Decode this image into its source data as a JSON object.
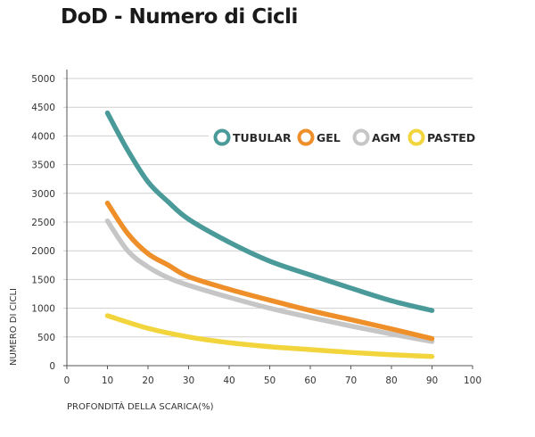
{
  "chart_data": {
    "type": "line",
    "title": "DoD - Numero di Cicli",
    "xlabel": "PROFONDITÀ DELLA SCARICA(%)",
    "ylabel": "NUMERO DI CICLI",
    "xlim": [
      0,
      100
    ],
    "ylim": [
      0,
      5000
    ],
    "xticks": [
      0,
      10,
      20,
      30,
      40,
      50,
      60,
      70,
      80,
      90,
      100
    ],
    "yticks": [
      0,
      500,
      1000,
      1500,
      2000,
      2500,
      3000,
      3500,
      4000,
      4500,
      5000
    ],
    "grid": "horizontal",
    "legend_position": "top-right",
    "series": [
      {
        "name": "TUBULAR",
        "color": "#4a9a9a",
        "x": [
          10,
          15,
          20,
          25,
          30,
          40,
          50,
          60,
          70,
          80,
          90
        ],
        "y": [
          4400,
          3750,
          3200,
          2850,
          2550,
          2150,
          1820,
          1580,
          1350,
          1130,
          960
        ]
      },
      {
        "name": "GEL",
        "color": "#ee8f2a",
        "x": [
          10,
          15,
          20,
          25,
          30,
          40,
          50,
          60,
          70,
          80,
          90
        ],
        "y": [
          2830,
          2300,
          1950,
          1750,
          1550,
          1330,
          1140,
          960,
          800,
          640,
          470
        ]
      },
      {
        "name": "AGM",
        "color": "#c6c6c6",
        "x": [
          10,
          15,
          20,
          25,
          30,
          40,
          50,
          60,
          70,
          80,
          90
        ],
        "y": [
          2520,
          2000,
          1720,
          1530,
          1400,
          1190,
          1000,
          840,
          690,
          550,
          420
        ]
      },
      {
        "name": "PASTED",
        "color": "#f2d53c",
        "x": [
          10,
          20,
          30,
          40,
          50,
          60,
          70,
          80,
          90
        ],
        "y": [
          870,
          650,
          500,
          400,
          330,
          280,
          230,
          190,
          160
        ]
      }
    ]
  }
}
